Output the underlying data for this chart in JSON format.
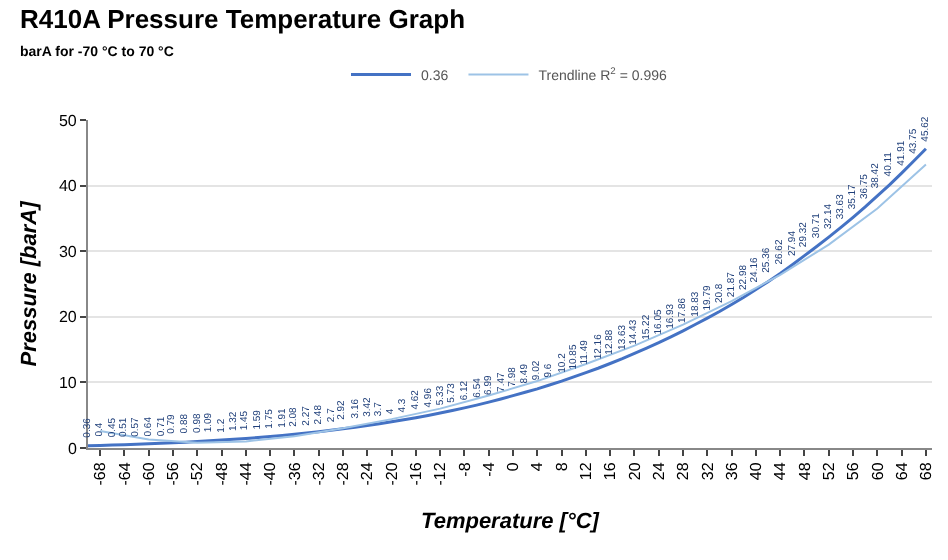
{
  "chart_data": {
    "type": "line",
    "title": "R410A Pressure Temperature Graph",
    "subtitle": "barA for -70 °C to 70 °C",
    "xlabel": "Temperature [°C]",
    "ylabel": "Pressure [barA]",
    "x": [
      -70,
      -68,
      -66,
      -64,
      -62,
      -60,
      -58,
      -56,
      -54,
      -52,
      -50,
      -48,
      -46,
      -44,
      -42,
      -40,
      -38,
      -36,
      -34,
      -32,
      -30,
      -28,
      -26,
      -24,
      -22,
      -20,
      -18,
      -16,
      -14,
      -12,
      -10,
      -8,
      -6,
      -4,
      -2,
      0,
      2,
      4,
      6,
      8,
      10,
      12,
      14,
      16,
      18,
      20,
      22,
      24,
      26,
      28,
      30,
      32,
      34,
      36,
      38,
      40,
      42,
      44,
      46,
      48,
      50,
      52,
      54,
      56,
      58,
      60,
      62,
      64,
      66,
      68
    ],
    "series": [
      {
        "name": "0.36",
        "color": "#4472c4",
        "data_labels": true,
        "values": [
          0.36,
          0.4,
          0.45,
          0.51,
          0.57,
          0.64,
          0.71,
          0.79,
          0.88,
          0.98,
          1.09,
          1.2,
          1.32,
          1.45,
          1.59,
          1.75,
          1.91,
          2.08,
          2.27,
          2.48,
          2.7,
          2.92,
          3.16,
          3.42,
          3.7,
          4.0,
          4.3,
          4.62,
          4.96,
          5.33,
          5.73,
          6.12,
          6.54,
          6.99,
          7.47,
          7.98,
          8.49,
          9.02,
          9.6,
          10.2,
          10.85,
          11.49,
          12.16,
          12.88,
          13.63,
          14.43,
          15.22,
          16.05,
          16.93,
          17.86,
          18.83,
          19.79,
          20.8,
          21.87,
          22.98,
          24.16,
          25.36,
          26.62,
          27.94,
          29.32,
          30.71,
          32.14,
          33.63,
          35.17,
          36.75,
          38.42,
          40.11,
          41.91,
          43.75,
          45.62
        ]
      },
      {
        "name": "Trendline R$^{2}$ = 0.996",
        "color": "#9dc3e6",
        "x": [
          -68,
          -60,
          -52,
          -44,
          -36,
          -28,
          -20,
          -12,
          -4,
          4,
          12,
          20,
          28,
          36,
          44,
          52,
          60,
          68
        ],
        "values": [
          2.6,
          1.3,
          0.8,
          1.0,
          1.8,
          3.0,
          4.4,
          6.0,
          8.0,
          10.2,
          12.8,
          15.6,
          18.8,
          22.4,
          26.4,
          31.0,
          36.5,
          43.2
        ]
      }
    ],
    "xlim": [
      -70,
      69
    ],
    "xticks": [
      -68,
      -64,
      -60,
      -56,
      -52,
      -48,
      -44,
      -40,
      -36,
      -32,
      -28,
      -24,
      -20,
      -16,
      -12,
      -8,
      -4,
      0,
      4,
      8,
      12,
      16,
      20,
      24,
      28,
      32,
      36,
      40,
      44,
      48,
      52,
      56,
      60,
      64,
      68
    ],
    "ylim": [
      0,
      50
    ],
    "yticks": [
      0,
      10,
      20,
      30,
      40,
      50
    ],
    "grid": "y",
    "legend": "top",
    "marker": "none",
    "line_style": "solid"
  }
}
